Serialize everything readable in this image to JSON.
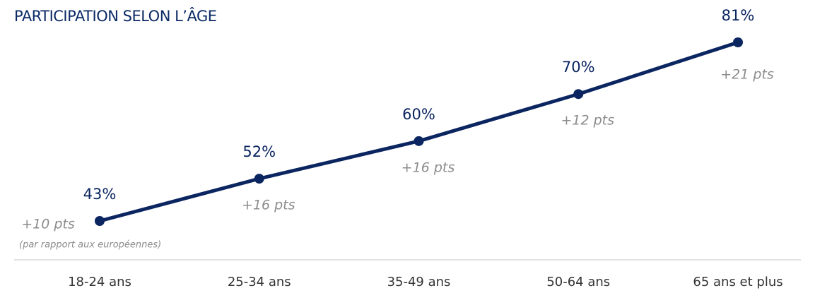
{
  "chart_data": {
    "type": "line",
    "title": "PARTICIPATION SELON L’ÂGE",
    "categories": [
      "18-24 ans",
      "25-34 ans",
      "35-49 ans",
      "50-64 ans",
      "65 ans et plus"
    ],
    "series": [
      {
        "color": "#0b2560",
        "values": [
          43,
          52,
          60,
          70,
          81
        ],
        "value_labels": [
          "43%",
          "52%",
          "60%",
          "70%",
          "81%"
        ]
      }
    ],
    "annotations": [
      "+10 pts",
      "+16 pts",
      "+16 pts",
      "+12 pts",
      "+21 pts"
    ],
    "note": "(par rapport aux européennes)"
  }
}
